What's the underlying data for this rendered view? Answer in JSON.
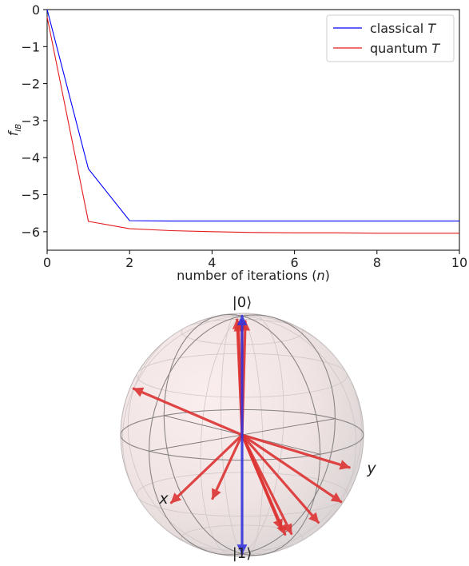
{
  "chart_data": [
    {
      "type": "line",
      "xlabel_text": "number of iterations (",
      "xlabel_var": "n",
      "xlabel_close": ")",
      "ylabel_base": "f",
      "ylabel_sub": "IB",
      "xlim": [
        0,
        10
      ],
      "ylim": [
        -6.5,
        0
      ],
      "xticks": [
        0,
        2,
        4,
        6,
        8,
        10
      ],
      "yticks": [
        0,
        -1,
        -2,
        -3,
        -4,
        -5,
        -6
      ],
      "legend_position": "top-right",
      "series": [
        {
          "name": "classical",
          "name_var": "T",
          "color": "#0000ff",
          "x": [
            0,
            1,
            2,
            3,
            4,
            5,
            6,
            7,
            8,
            9,
            10
          ],
          "y": [
            0.0,
            -4.3,
            -5.7,
            -5.71,
            -5.71,
            -5.71,
            -5.71,
            -5.71,
            -5.71,
            -5.71,
            -5.71
          ]
        },
        {
          "name": "quantum",
          "name_var": "T",
          "color": "#e41a1c",
          "x": [
            0,
            1,
            2,
            3,
            4,
            5,
            6,
            7,
            8,
            9,
            10
          ],
          "y": [
            -0.2,
            -5.72,
            -5.92,
            -5.97,
            -6.0,
            -6.02,
            -6.03,
            -6.03,
            -6.04,
            -6.04,
            -6.04
          ]
        }
      ]
    },
    {
      "type": "bloch-sphere",
      "north_label": "|0⟩",
      "south_label": "|1⟩",
      "x_axis_label": "x",
      "y_axis_label": "y",
      "blue_color": "#3333dd",
      "red_color": "#dd3333",
      "blue_vectors": [
        {
          "theta_deg": 0,
          "phi_deg": 0
        },
        {
          "theta_deg": 180,
          "phi_deg": 0
        }
      ],
      "red_vectors": [
        {
          "theta_deg": 7,
          "phi_deg": 60
        },
        {
          "theta_deg": 8,
          "phi_deg": 40
        },
        {
          "theta_deg": 9,
          "phi_deg": 30
        },
        {
          "theta_deg": 10,
          "phi_deg": 50
        },
        {
          "theta_deg": 65,
          "phi_deg": 120
        },
        {
          "theta_deg": 110,
          "phi_deg": -70
        },
        {
          "theta_deg": 120,
          "phi_deg": -30
        },
        {
          "theta_deg": 130,
          "phi_deg": -15
        },
        {
          "theta_deg": 135,
          "phi_deg": 5
        },
        {
          "theta_deg": 135,
          "phi_deg": 10
        },
        {
          "theta_deg": 130,
          "phi_deg": 15
        },
        {
          "theta_deg": 110,
          "phi_deg": 55
        },
        {
          "theta_deg": 115,
          "phi_deg": 80
        }
      ]
    }
  ]
}
